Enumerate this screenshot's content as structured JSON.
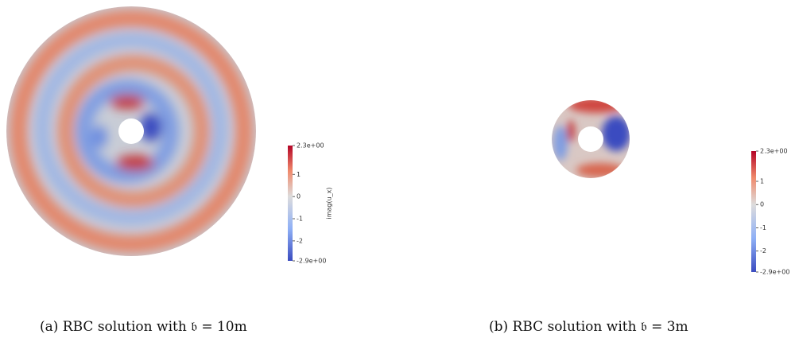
{
  "panels": [
    {
      "caption": "(a) RBC solution with 𝔟 = 10m",
      "colorbar": {
        "title": "imag(u_x)",
        "lim": [
          -2.9,
          2.3
        ],
        "ticks": [
          {
            "value": 2.3,
            "label": "2.3e+00"
          },
          1,
          0,
          -1,
          -2,
          {
            "value": -2.9,
            "label": "-2.9e+00"
          }
        ]
      }
    },
    {
      "caption": "(b) RBC solution with 𝔟 = 3m",
      "colorbar": {
        "lim": [
          -2.9,
          2.3
        ],
        "ticks": [
          {
            "value": 2.3,
            "label": "2.3e+00"
          },
          1,
          0,
          -1,
          -2,
          {
            "value": -2.9,
            "label": "-2.9e+00"
          }
        ]
      }
    }
  ]
}
